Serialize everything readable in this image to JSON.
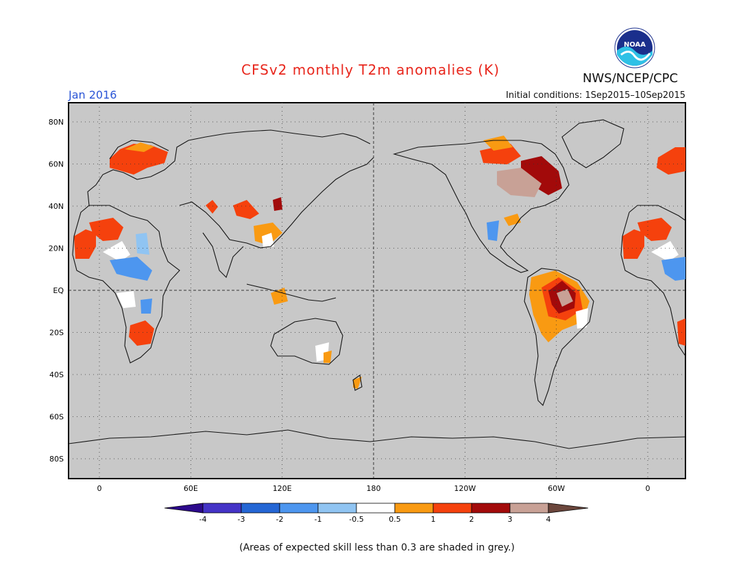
{
  "title": "CFSv2 monthly T2m anomalies (K)",
  "agency": "NWS/NCEP/CPC",
  "logo_text": "NOAA",
  "month": "Jan 2016",
  "initial_conditions": "Initial conditions: 1Sep2015–10Sep2015",
  "footnote": "(Areas of expected skill less than 0.3 are shaded in grey.)",
  "map": {
    "background_color": "#c8c8c8",
    "lat_labels": [
      "80N",
      "60N",
      "40N",
      "20N",
      "EQ",
      "20S",
      "40S",
      "60S",
      "80S"
    ],
    "lon_labels": [
      "0",
      "60E",
      "120E",
      "180",
      "120W",
      "60W",
      "0"
    ],
    "lat_values": [
      80,
      60,
      40,
      20,
      0,
      -20,
      -40,
      -60,
      -80
    ],
    "lon_values": [
      0,
      60,
      120,
      180,
      240,
      300,
      360
    ]
  },
  "legend": {
    "ticks": [
      "-4",
      "-3",
      "-2",
      "-1",
      "-0.5",
      "0.5",
      "1",
      "2",
      "3",
      "4"
    ],
    "colors": [
      "#2d0a8c",
      "#4433c6",
      "#2466d4",
      "#4d96ef",
      "#90c4f2",
      "#ffffff",
      "#f99a12",
      "#f5410d",
      "#a20a0a",
      "#c8a196",
      "#6b463c"
    ]
  },
  "anomaly_colors": {
    "0.5": "#f99a12",
    "1": "#f5410d",
    "2": "#a20a0a",
    "3": "#c8a196",
    "-0.5": "#ffffff",
    "-1": "#90c4f2",
    "-2": "#4d96ef"
  }
}
